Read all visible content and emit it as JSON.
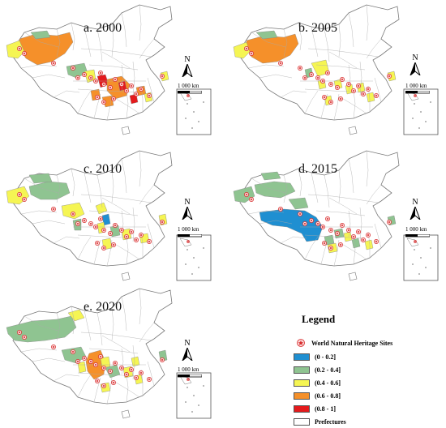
{
  "panels": [
    {
      "id": "a",
      "title": "a. 2000",
      "period": 2000
    },
    {
      "id": "b",
      "title": "b. 2005",
      "period": 2005
    },
    {
      "id": "c",
      "title": "c. 2010",
      "period": 2010
    },
    {
      "id": "d",
      "title": "d. 2015",
      "period": 2015
    },
    {
      "id": "e",
      "title": "e. 2020",
      "period": 2020
    }
  ],
  "north_label": "N",
  "scale_label": "1 000 km",
  "legend": {
    "title": "Legend",
    "site_label": "World Natural Heritage Sites",
    "site_color": "#d62728",
    "classes": [
      {
        "label": "(0 - 0.2]",
        "color": "#1f8fd1"
      },
      {
        "label": "(0.2 - 0.4]",
        "color": "#8fc491"
      },
      {
        "label": "(0.4 - 0.6]",
        "color": "#f5f553"
      },
      {
        "label": "(0.6 - 0.8]",
        "color": "#f5902a"
      },
      {
        "label": "(0.8 - 1]",
        "color": "#e41a1c"
      }
    ],
    "prefecture_label": "Prefectures",
    "prefecture_color": "#ffffff"
  }
}
